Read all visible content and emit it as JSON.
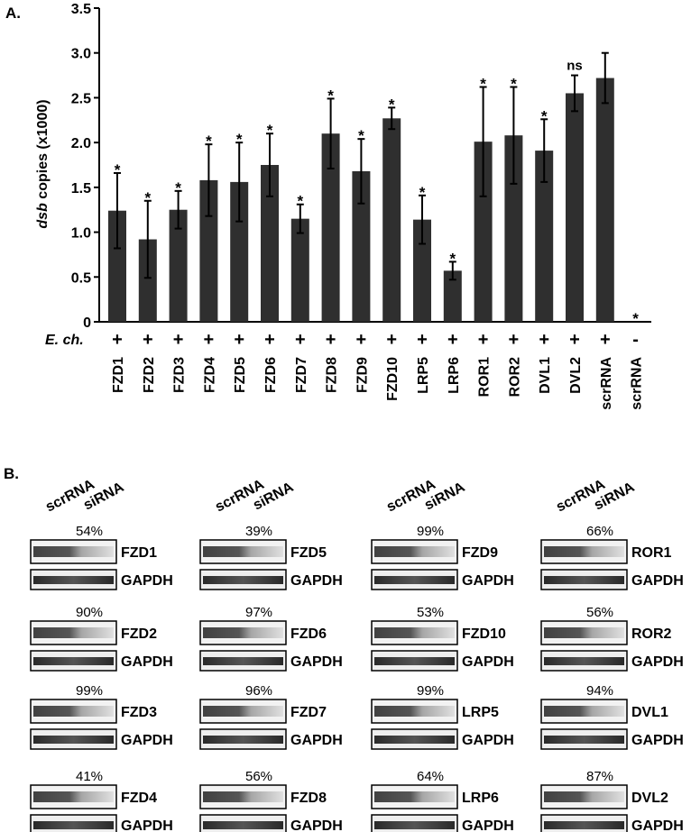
{
  "panel_a": {
    "label": "A.",
    "ylabel_italic": "dsb",
    "ylabel_rest": " copies (x1000)",
    "row_label": "E. ch.",
    "chart_data": {
      "type": "bar",
      "ylim": [
        0,
        3.5
      ],
      "yticks": [
        "0",
        "0.5",
        "1.0",
        "1.5",
        "2.0",
        "2.5",
        "3.0",
        "3.5"
      ],
      "categories": [
        "FZD1",
        "FZD2",
        "FZD3",
        "FZD4",
        "FZD5",
        "FZD6",
        "FZD7",
        "FZD8",
        "FZD9",
        "FZD10",
        "LRP5",
        "LRP6",
        "ROR1",
        "ROR2",
        "DVL1",
        "DVL2",
        "scrRNA",
        "scrRNA"
      ],
      "values": [
        1.24,
        0.92,
        1.25,
        1.58,
        1.56,
        1.75,
        1.15,
        2.1,
        1.68,
        2.27,
        1.14,
        0.57,
        2.01,
        2.08,
        1.91,
        2.55,
        2.72,
        0
      ],
      "errors": [
        0.42,
        0.43,
        0.21,
        0.4,
        0.44,
        0.35,
        0.16,
        0.39,
        0.36,
        0.12,
        0.27,
        0.1,
        0.61,
        0.54,
        0.35,
        0.2,
        0.28,
        0
      ],
      "significance": [
        "*",
        "*",
        "*",
        "*",
        "*",
        "*",
        "*",
        "*",
        "*",
        "*",
        "*",
        "*",
        "*",
        "*",
        "*",
        "ns",
        "",
        "*"
      ],
      "echinococcus": [
        "+",
        "+",
        "+",
        "+",
        "+",
        "+",
        "+",
        "+",
        "+",
        "+",
        "+",
        "+",
        "+",
        "+",
        "+",
        "+",
        "+",
        "-"
      ],
      "bar_color": "#2f2f2f"
    }
  },
  "panel_b": {
    "label": "B.",
    "lane_labels": [
      "scrRNA",
      "siRNA"
    ],
    "loading_control": "GAPDH",
    "blots": [
      {
        "target": "FZD1",
        "knockdown": "54%"
      },
      {
        "target": "FZD5",
        "knockdown": "39%"
      },
      {
        "target": "FZD9",
        "knockdown": "99%"
      },
      {
        "target": "ROR1",
        "knockdown": "66%"
      },
      {
        "target": "FZD2",
        "knockdown": "90%"
      },
      {
        "target": "FZD6",
        "knockdown": "97%"
      },
      {
        "target": "FZD10",
        "knockdown": "53%"
      },
      {
        "target": "ROR2",
        "knockdown": "56%"
      },
      {
        "target": "FZD3",
        "knockdown": "99%"
      },
      {
        "target": "FZD7",
        "knockdown": "96%"
      },
      {
        "target": "LRP5",
        "knockdown": "99%"
      },
      {
        "target": "DVL1",
        "knockdown": "94%"
      },
      {
        "target": "FZD4",
        "knockdown": "41%"
      },
      {
        "target": "FZD8",
        "knockdown": "56%"
      },
      {
        "target": "LRP6",
        "knockdown": "64%"
      },
      {
        "target": "DVL2",
        "knockdown": "87%"
      }
    ]
  }
}
